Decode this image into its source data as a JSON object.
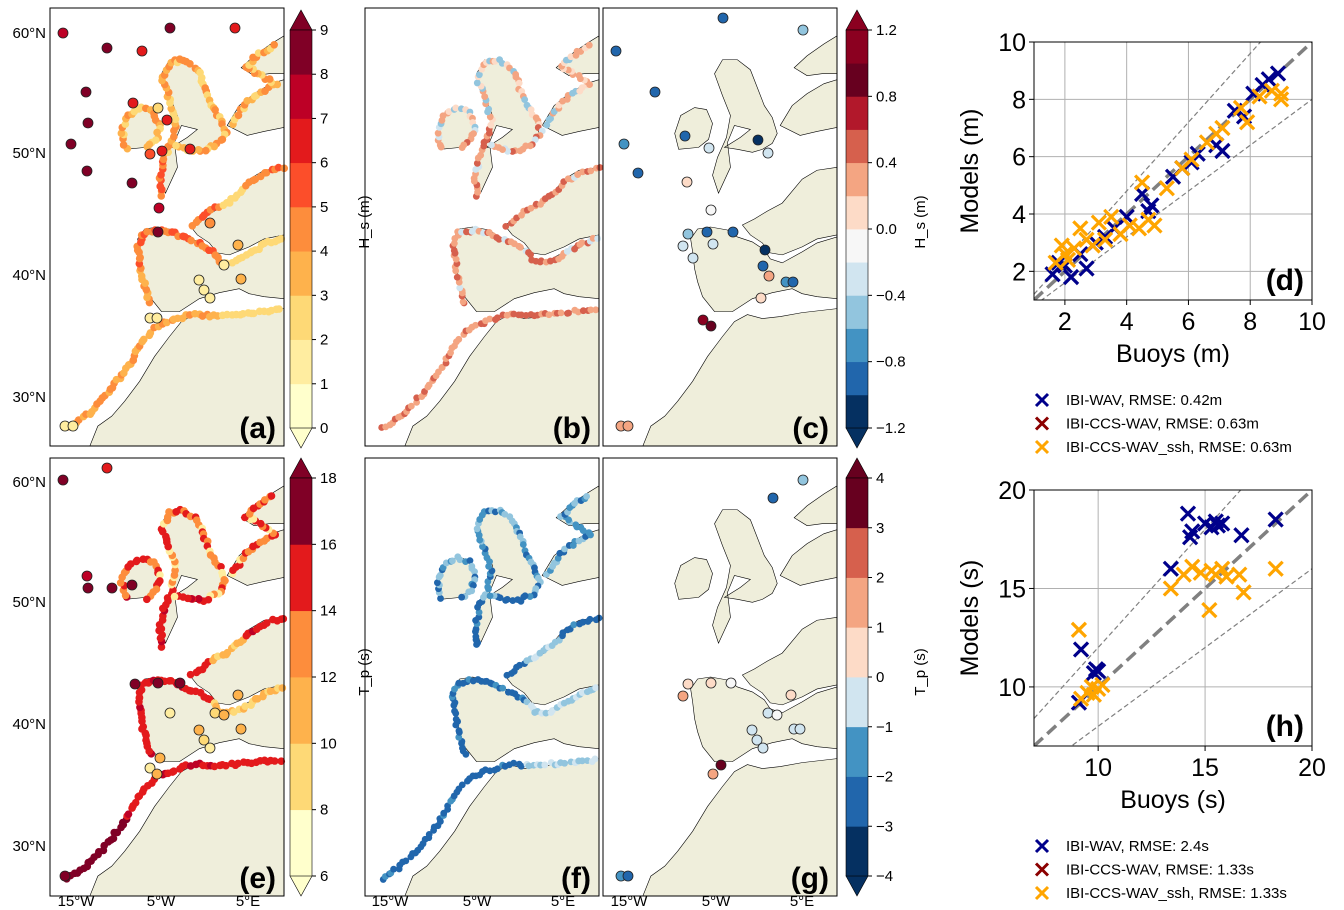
{
  "figure": {
    "panel_labels": [
      "(a)",
      "(b)",
      "(c)",
      "(d)",
      "(e)",
      "(f)",
      "(g)",
      "(h)"
    ]
  },
  "colors": {
    "land": "#efeedb",
    "ocean": "#ffffff",
    "ibi_wav": "#00008b",
    "ibi_ccs_wav": "#8b0000",
    "ibi_ccs_wav_ssh": "#ffa500",
    "ref_line": "#808080"
  },
  "maps": {
    "lat_ticks": [
      "60°N",
      "50°N",
      "40°N",
      "30°N"
    ],
    "lon_ticks": [
      "15°W",
      "5°W",
      "5°E"
    ],
    "colorbars": [
      {
        "id": "hs",
        "label": "H_s (m)",
        "ticks": [
          "0",
          "1",
          "2",
          "3",
          "4",
          "5",
          "6",
          "7",
          "8",
          "9"
        ],
        "colors": [
          "#ffffcc",
          "#ffeda0",
          "#fed976",
          "#feb24c",
          "#fd8d3c",
          "#fc4e2a",
          "#e31a1c",
          "#bd0026",
          "#800026"
        ]
      },
      {
        "id": "hs_diff",
        "label": "H_s (m)",
        "ticks": [
          "−1.2",
          "−0.8",
          "−0.4",
          "0.0",
          "0.4",
          "0.8",
          "1.2"
        ],
        "colors": [
          "#053061",
          "#2166ac",
          "#4393c3",
          "#92c5de",
          "#d1e5f0",
          "#f7f7f7",
          "#fddbc7",
          "#f4a582",
          "#d6604d",
          "#b2182b",
          "#67001f",
          "#8b0020"
        ]
      },
      {
        "id": "tp",
        "label": "T_p (s)",
        "ticks": [
          "6",
          "8",
          "10",
          "12",
          "14",
          "16",
          "18"
        ],
        "colors": [
          "#ffffcc",
          "#fed976",
          "#feb24c",
          "#fd8d3c",
          "#e31a1c",
          "#800026"
        ]
      },
      {
        "id": "tp_diff",
        "label": "T_p (s)",
        "ticks": [
          "−4",
          "−3",
          "−2",
          "−1",
          "0",
          "1",
          "2",
          "3",
          "4"
        ],
        "colors": [
          "#053061",
          "#2166ac",
          "#4393c3",
          "#d1e5f0",
          "#fddbc7",
          "#f4a582",
          "#d6604d",
          "#67001f"
        ]
      }
    ]
  },
  "chart_data": [
    {
      "type": "scatter",
      "panel": "(d)",
      "xlabel": "Buoys (m)",
      "ylabel": "Models (m)",
      "xlim": [
        1,
        10
      ],
      "ylim": [
        1,
        10
      ],
      "xticks": [
        "2",
        "4",
        "6",
        "8",
        "10"
      ],
      "yticks": [
        "2",
        "4",
        "6",
        "8",
        "10"
      ],
      "grid": true,
      "legend_position": "below",
      "series": [
        {
          "name": "IBI-WAV, RMSE: 0.42m",
          "color": "#00008b",
          "x": [
            1.6,
            1.8,
            2.0,
            2.2,
            2.5,
            2.7,
            3.0,
            3.3,
            3.6,
            4.0,
            4.5,
            4.7,
            4.8,
            5.5,
            5.8,
            6.1,
            6.3,
            6.9,
            7.1,
            7.5,
            7.8,
            8.1,
            8.4,
            8.6,
            8.9
          ],
          "y": [
            1.9,
            2.3,
            2.2,
            1.8,
            2.6,
            2.1,
            3.0,
            3.2,
            3.5,
            3.9,
            4.7,
            4.1,
            4.3,
            5.3,
            5.6,
            5.8,
            6.1,
            6.4,
            6.2,
            7.6,
            7.4,
            8.2,
            8.5,
            8.7,
            8.9
          ]
        },
        {
          "name": "IBI-CCS-WAV, RMSE: 0.63m",
          "color": "#8b0000",
          "x": [],
          "y": []
        },
        {
          "name": "IBI-CCS-WAV_ssh, RMSE: 0.63m",
          "color": "#ffa500",
          "x": [
            1.7,
            1.9,
            2.0,
            2.1,
            2.3,
            2.5,
            2.7,
            2.9,
            3.1,
            3.3,
            3.5,
            3.8,
            4.1,
            4.4,
            4.5,
            4.7,
            4.9,
            5.3,
            5.8,
            6.1,
            6.6,
            6.9,
            7.1,
            7.7,
            7.9,
            8.3,
            8.7,
            9.0,
            9.0
          ],
          "y": [
            2.3,
            2.9,
            2.6,
            2.4,
            2.8,
            3.5,
            3.1,
            2.9,
            3.7,
            3.1,
            3.9,
            3.3,
            3.6,
            3.5,
            5.1,
            3.8,
            3.6,
            4.9,
            5.6,
            5.9,
            6.5,
            6.8,
            7.0,
            7.7,
            7.2,
            8.1,
            8.3,
            8.2,
            8.0
          ]
        }
      ],
      "reference_lines": [
        "y = x",
        "y = 1.2x",
        "y = 0.8x"
      ]
    },
    {
      "type": "scatter",
      "panel": "(h)",
      "xlabel": "Buoys (s)",
      "ylabel": "Models (s)",
      "xlim": [
        7,
        20
      ],
      "ylim": [
        7,
        20
      ],
      "xticks": [
        "10",
        "15",
        "20"
      ],
      "yticks": [
        "10",
        "15",
        "20"
      ],
      "grid": true,
      "legend_position": "below",
      "series": [
        {
          "name": "IBI-WAV, RMSE: 2.4s",
          "color": "#00008b",
          "x": [
            9.1,
            9.2,
            9.8,
            9.9,
            10.0,
            13.4,
            14.2,
            14.3,
            14.4,
            15.0,
            15.3,
            15.5,
            15.6,
            15.8,
            16.7,
            18.3
          ],
          "y": [
            9.2,
            11.9,
            10.7,
            10.9,
            10.8,
            16.0,
            18.8,
            17.6,
            17.9,
            18.3,
            18.1,
            18.4,
            18.2,
            18.3,
            17.7,
            18.5
          ]
        },
        {
          "name": "IBI-CCS-WAV, RMSE: 1.33s",
          "color": "#8b0000",
          "x": [],
          "y": []
        },
        {
          "name": "IBI-CCS-WAV_ssh, RMSE: 1.33s",
          "color": "#ffa500",
          "x": [
            9.1,
            9.2,
            9.5,
            9.7,
            9.8,
            10.0,
            10.2,
            13.4,
            14.0,
            14.4,
            14.8,
            15.2,
            15.3,
            15.5,
            15.8,
            16.0,
            16.6,
            16.8,
            18.3
          ],
          "y": [
            12.9,
            9.4,
            9.7,
            10.0,
            9.6,
            9.9,
            10.1,
            15.0,
            15.7,
            16.1,
            15.8,
            13.9,
            15.9,
            15.7,
            16.0,
            15.6,
            15.7,
            14.8,
            16.0
          ]
        }
      ],
      "reference_lines": [
        "y = x",
        "y = 1.2x",
        "y = 0.8x"
      ]
    }
  ]
}
